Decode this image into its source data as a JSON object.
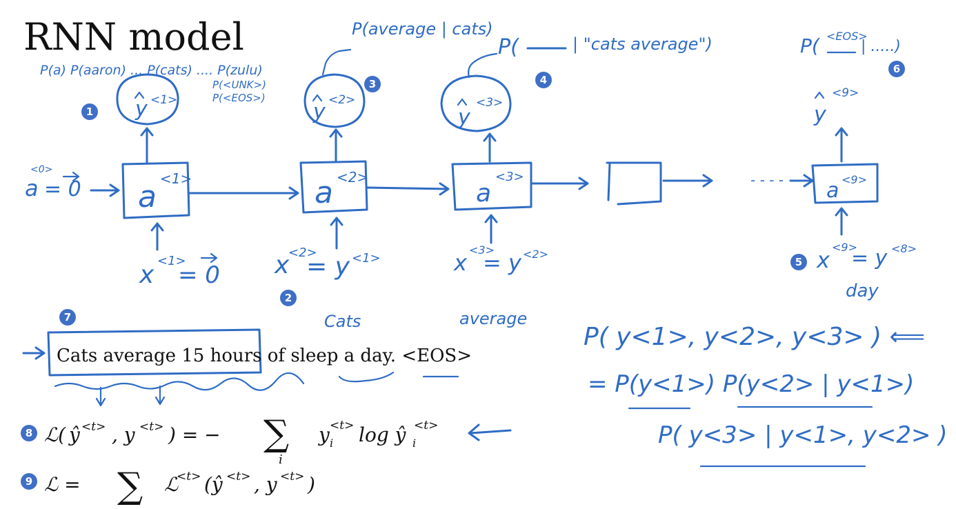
{
  "title": "RNN model",
  "colors": {
    "ink": "#2f6cc4",
    "badge": "#3f6fc6",
    "text": "#111111"
  },
  "top_probs": {
    "line1": "P(a) P(aaron) ... P(cats) .... P(zulu)",
    "line2": "P(<UNK>)",
    "line3": "P(<EOS>)"
  },
  "cond_probs": {
    "p2": "P(average | cats)",
    "p3_open": "P(",
    "p3_given": "| \"cats average\")",
    "p9_open": "P(",
    "p9_token": "<EOS>",
    "p9_rest": "| .....)"
  },
  "nodes": {
    "a0_label": "a",
    "a0_sup": "<0>",
    "a0_eq": "= 0",
    "cells": [
      {
        "base": "a",
        "sup": "<1>"
      },
      {
        "base": "a",
        "sup": "<2>"
      },
      {
        "base": "a",
        "sup": "<3>"
      },
      {
        "base": "",
        "sup": ""
      },
      {
        "base": "a",
        "sup": "<9>"
      }
    ],
    "outputs": [
      {
        "base": "y",
        "sup": "<1>"
      },
      {
        "base": "y",
        "sup": "<2>"
      },
      {
        "base": "y",
        "sup": "<3>"
      },
      {
        "base": "y",
        "sup": "<9>"
      }
    ],
    "dots": "- - - -"
  },
  "inputs": {
    "x1": {
      "x": "x",
      "sup": "<1>",
      "eq": "= 0"
    },
    "x2": {
      "x": "x",
      "sup": "<2>",
      "eq": "= y",
      "ysup": "<1>"
    },
    "x3": {
      "x": "x",
      "sup": "<3>",
      "eq": "= y",
      "ysup": "<2>"
    },
    "x9": {
      "x": "x",
      "sup": "<9>",
      "eq": "= y",
      "ysup": "<8>"
    }
  },
  "word_labels": {
    "cats": "Cats",
    "average": "average",
    "day": "day"
  },
  "sentence": "Cats average 15 hours of sleep a day. <EOS>",
  "badges": [
    "1",
    "2",
    "3",
    "4",
    "5",
    "6",
    "7",
    "8",
    "9"
  ],
  "loss": {
    "step": "ℒ(ŷ<t>, y<t>) = − ∑ y_i<t> log ŷ_i<t>",
    "step_L": "ℒ(",
    "step_yhat": "ŷ",
    "step_t1": "<t>",
    "step_comma_y": ", y",
    "step_t2": "<t>",
    "step_eq": ") = −",
    "step_sum": "∑",
    "step_i": "i",
    "step_yi": "y",
    "step_isub": "i",
    "step_t3": "<t>",
    "step_log": " log ŷ",
    "step_isub2": "i",
    "step_t4": "<t>",
    "total_L": "ℒ  =",
    "total_sum": "∑",
    "total_body": "ℒ",
    "total_t": "<t>",
    "total_args": "(ŷ",
    "total_t2": "<t>",
    "total_y": ", y",
    "total_t3": "<t>",
    "total_close": ")"
  },
  "joint": {
    "line1": "P( y<1>, y<2>, y<3> ) ⟸",
    "line2_a": "= P(y<1>) P(y<2> | y<1>)",
    "line3": "P( y<3> | y<1>, y<2> )"
  }
}
